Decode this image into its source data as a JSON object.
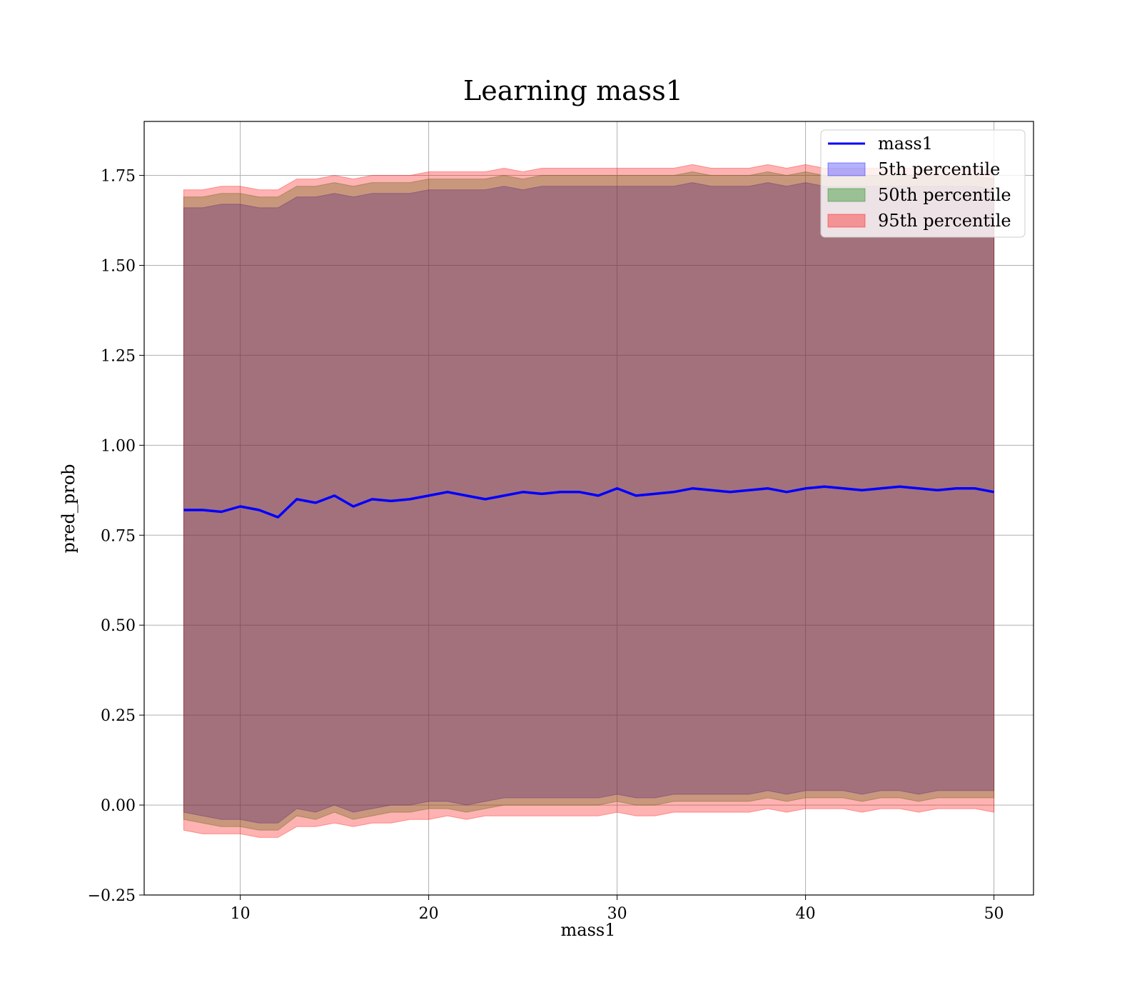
{
  "chart_data": {
    "type": "line",
    "title": "Learning mass1",
    "xlabel": "mass1",
    "ylabel": "pred_prob",
    "xlim": [
      4.9,
      52.1
    ],
    "ylim": [
      -0.25,
      1.9
    ],
    "x_ticks": [
      10,
      20,
      30,
      40,
      50
    ],
    "x_tick_labels": [
      "10",
      "20",
      "30",
      "40",
      "50"
    ],
    "y_ticks": [
      -0.25,
      0.0,
      0.25,
      0.5,
      0.75,
      1.0,
      1.25,
      1.5,
      1.75
    ],
    "y_tick_labels": [
      "−0.25",
      "0.00",
      "0.25",
      "0.50",
      "0.75",
      "1.00",
      "1.25",
      "1.50",
      "1.75"
    ],
    "grid": true,
    "legend_position": "top-right",
    "x": [
      7.0,
      8.0,
      9.0,
      10.0,
      11.0,
      12.0,
      13.0,
      14.0,
      15.0,
      16.0,
      17.0,
      18.0,
      19.0,
      20.0,
      21.0,
      22.0,
      23.0,
      24.0,
      25.0,
      26.0,
      27.0,
      28.0,
      29.0,
      30.0,
      31.0,
      32.0,
      33.0,
      34.0,
      35.0,
      36.0,
      37.0,
      38.0,
      39.0,
      40.0,
      41.0,
      42.0,
      43.0,
      44.0,
      45.0,
      46.0,
      47.0,
      48.0,
      49.0,
      50.0
    ],
    "series": [
      {
        "name": "mass1",
        "kind": "line",
        "color": "#0000ff",
        "values": [
          0.82,
          0.82,
          0.815,
          0.83,
          0.82,
          0.8,
          0.85,
          0.84,
          0.86,
          0.83,
          0.85,
          0.845,
          0.85,
          0.86,
          0.87,
          0.86,
          0.85,
          0.86,
          0.87,
          0.865,
          0.87,
          0.87,
          0.86,
          0.88,
          0.86,
          0.865,
          0.87,
          0.88,
          0.875,
          0.87,
          0.875,
          0.88,
          0.87,
          0.88,
          0.885,
          0.88,
          0.875,
          0.88,
          0.885,
          0.88,
          0.875,
          0.88,
          0.88,
          0.87
        ]
      },
      {
        "name": "5th percentile",
        "kind": "band",
        "color": "#0000ff",
        "lower": [
          -0.02,
          -0.03,
          -0.04,
          -0.04,
          -0.05,
          -0.05,
          -0.01,
          -0.02,
          0.0,
          -0.02,
          -0.01,
          0.0,
          0.0,
          0.01,
          0.01,
          0.0,
          0.01,
          0.02,
          0.02,
          0.02,
          0.02,
          0.02,
          0.02,
          0.03,
          0.02,
          0.02,
          0.03,
          0.03,
          0.03,
          0.03,
          0.03,
          0.04,
          0.03,
          0.04,
          0.04,
          0.04,
          0.03,
          0.04,
          0.04,
          0.03,
          0.04,
          0.04,
          0.04,
          0.04
        ],
        "upper": [
          1.66,
          1.66,
          1.67,
          1.67,
          1.66,
          1.66,
          1.69,
          1.69,
          1.7,
          1.69,
          1.7,
          1.7,
          1.7,
          1.71,
          1.71,
          1.71,
          1.71,
          1.72,
          1.71,
          1.72,
          1.72,
          1.72,
          1.72,
          1.72,
          1.72,
          1.72,
          1.72,
          1.73,
          1.72,
          1.72,
          1.72,
          1.73,
          1.72,
          1.73,
          1.72,
          1.72,
          1.72,
          1.72,
          1.72,
          1.72,
          1.72,
          1.72,
          1.72,
          1.71
        ]
      },
      {
        "name": "50th percentile",
        "kind": "band",
        "color": "#008000",
        "lower": [
          -0.04,
          -0.05,
          -0.06,
          -0.06,
          -0.07,
          -0.07,
          -0.03,
          -0.04,
          -0.02,
          -0.04,
          -0.03,
          -0.02,
          -0.02,
          -0.01,
          -0.01,
          -0.02,
          -0.01,
          0.0,
          0.0,
          0.0,
          0.0,
          0.0,
          0.0,
          0.01,
          0.0,
          0.0,
          0.01,
          0.01,
          0.01,
          0.01,
          0.01,
          0.02,
          0.01,
          0.02,
          0.02,
          0.02,
          0.01,
          0.02,
          0.02,
          0.01,
          0.02,
          0.02,
          0.02,
          0.02
        ],
        "upper": [
          1.69,
          1.69,
          1.7,
          1.7,
          1.69,
          1.69,
          1.72,
          1.72,
          1.73,
          1.72,
          1.73,
          1.73,
          1.73,
          1.74,
          1.74,
          1.74,
          1.74,
          1.75,
          1.74,
          1.75,
          1.75,
          1.75,
          1.75,
          1.75,
          1.75,
          1.75,
          1.75,
          1.76,
          1.75,
          1.75,
          1.75,
          1.76,
          1.75,
          1.76,
          1.75,
          1.75,
          1.75,
          1.75,
          1.75,
          1.75,
          1.75,
          1.75,
          1.75,
          1.74
        ]
      },
      {
        "name": "95th percentile",
        "kind": "band",
        "color": "#ff0000",
        "lower": [
          -0.07,
          -0.08,
          -0.08,
          -0.08,
          -0.09,
          -0.09,
          -0.06,
          -0.06,
          -0.05,
          -0.06,
          -0.05,
          -0.05,
          -0.04,
          -0.04,
          -0.03,
          -0.04,
          -0.03,
          -0.03,
          -0.03,
          -0.03,
          -0.03,
          -0.03,
          -0.03,
          -0.02,
          -0.03,
          -0.03,
          -0.02,
          -0.02,
          -0.02,
          -0.02,
          -0.02,
          -0.01,
          -0.02,
          -0.01,
          -0.01,
          -0.01,
          -0.02,
          -0.01,
          -0.01,
          -0.02,
          -0.01,
          -0.01,
          -0.01,
          -0.02
        ],
        "upper": [
          1.71,
          1.71,
          1.72,
          1.72,
          1.71,
          1.71,
          1.74,
          1.74,
          1.75,
          1.74,
          1.75,
          1.75,
          1.75,
          1.76,
          1.76,
          1.76,
          1.76,
          1.77,
          1.76,
          1.77,
          1.77,
          1.77,
          1.77,
          1.77,
          1.77,
          1.77,
          1.77,
          1.78,
          1.77,
          1.77,
          1.77,
          1.78,
          1.77,
          1.78,
          1.77,
          1.77,
          1.77,
          1.77,
          1.77,
          1.77,
          1.77,
          1.77,
          1.77,
          1.76
        ]
      }
    ]
  }
}
